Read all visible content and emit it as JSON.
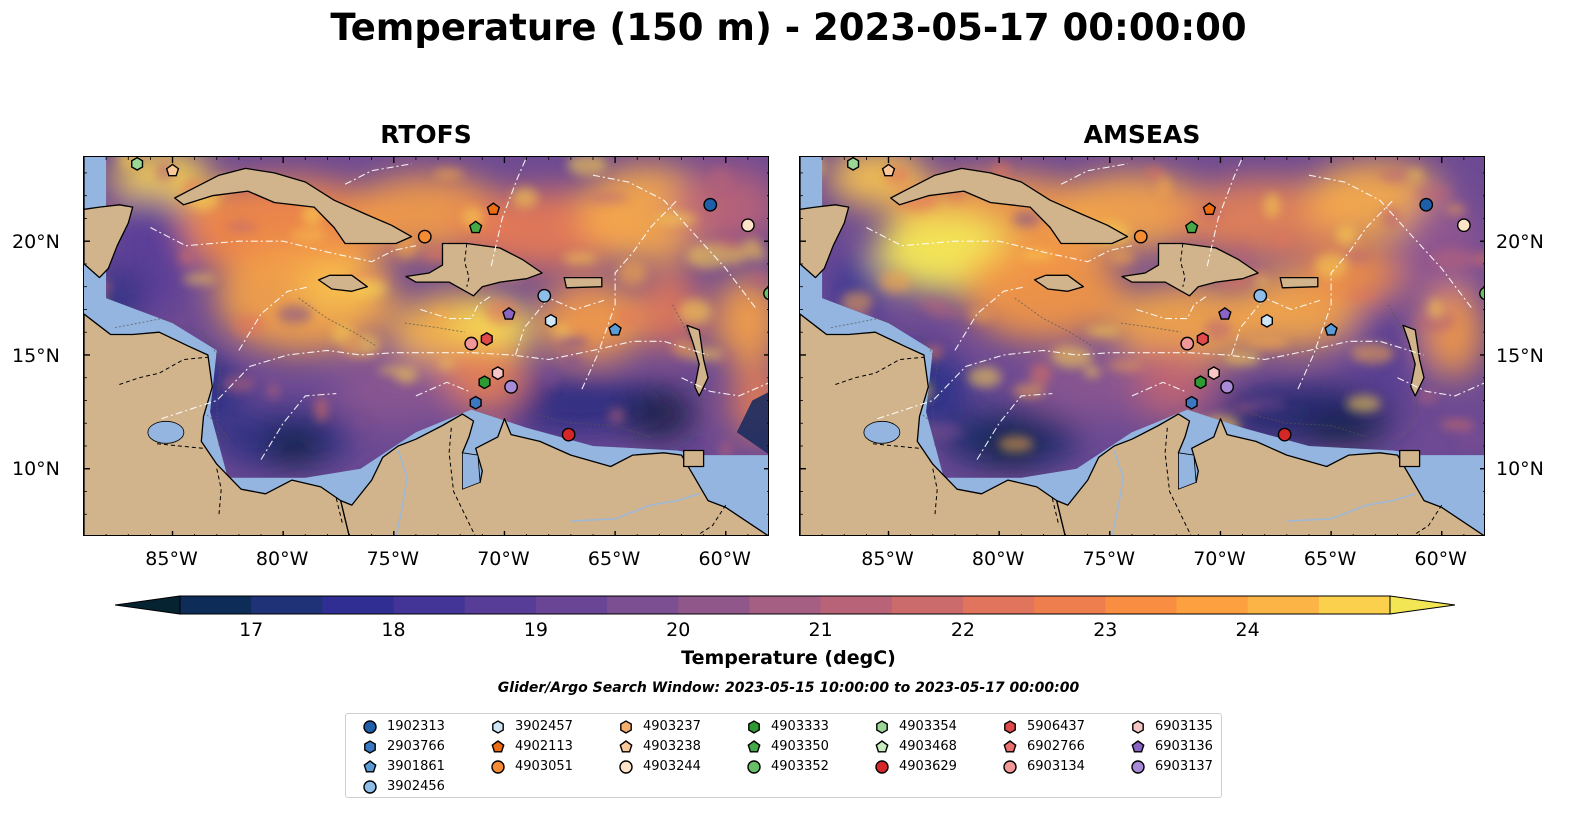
{
  "title": "Temperature (150 m) - 2023-05-17 00:00:00",
  "panels": [
    {
      "title": "RTOFS"
    },
    {
      "title": "AMSEAS"
    }
  ],
  "lat_labels": [
    "20°N",
    "15°N",
    "10°N"
  ],
  "lon_labels": [
    "85°W",
    "80°W",
    "75°W",
    "70°W",
    "65°W",
    "60°W"
  ],
  "colorbar": {
    "label": "Temperature (degC)",
    "ticks": [
      "17",
      "18",
      "19",
      "20",
      "21",
      "22",
      "23",
      "24"
    ],
    "colors": [
      "#062332",
      "#0e2c58",
      "#1f3278",
      "#302e92",
      "#433597",
      "#573d98",
      "#6a4595",
      "#7c4e92",
      "#90578b",
      "#a45f83",
      "#b86378",
      "#cc6b6c",
      "#e0745d",
      "#ee7e4e",
      "#f98d42",
      "#fca040",
      "#fdb446",
      "#fbd04d",
      "#f2e654"
    ]
  },
  "search_window": "Glider/Argo Search Window: 2023-05-15 10:00:00 to 2023-05-17 00:00:00",
  "legend": {
    "columns": [
      [
        {
          "label": "1902313",
          "marker": "circle",
          "color": "#1f5ea8"
        },
        {
          "label": "2903766",
          "marker": "hexagon",
          "color": "#3b78c2"
        },
        {
          "label": "3901861",
          "marker": "pentagon",
          "color": "#5b9bd5"
        },
        {
          "label": "3902456",
          "marker": "circle",
          "color": "#8dbde8"
        }
      ],
      [
        {
          "label": "3902457",
          "marker": "hexagon",
          "color": "#cfe6f7"
        },
        {
          "label": "4902113",
          "marker": "pentagon",
          "color": "#ee6c12"
        },
        {
          "label": "4903051",
          "marker": "circle",
          "color": "#f58c33"
        }
      ],
      [
        {
          "label": "4903237",
          "marker": "hexagon",
          "color": "#f8ae6c"
        },
        {
          "label": "4903238",
          "marker": "pentagon",
          "color": "#fbc89a"
        },
        {
          "label": "4903244",
          "marker": "circle",
          "color": "#fde3c8"
        }
      ],
      [
        {
          "label": "4903333",
          "marker": "hexagon",
          "color": "#2f9a34"
        },
        {
          "label": "4903350",
          "marker": "pentagon",
          "color": "#45aa46"
        },
        {
          "label": "4903352",
          "marker": "circle",
          "color": "#68c066"
        }
      ],
      [
        {
          "label": "4903354",
          "marker": "hexagon",
          "color": "#9bd895"
        },
        {
          "label": "4903468",
          "marker": "pentagon",
          "color": "#c8ecbe"
        },
        {
          "label": "4903629",
          "marker": "circle",
          "color": "#d62728"
        }
      ],
      [
        {
          "label": "5906437",
          "marker": "hexagon",
          "color": "#e04a4a"
        },
        {
          "label": "6902766",
          "marker": "pentagon",
          "color": "#ea7070"
        },
        {
          "label": "6903134",
          "marker": "circle",
          "color": "#f29797"
        }
      ],
      [
        {
          "label": "6903135",
          "marker": "hexagon",
          "color": "#f9c6c6"
        },
        {
          "label": "6903136",
          "marker": "pentagon",
          "color": "#8a64c2"
        },
        {
          "label": "6903137",
          "marker": "circle",
          "color": "#a98ad6"
        }
      ]
    ]
  },
  "map_markers": [
    {
      "float": "4903354",
      "marker": "hexagon",
      "color": "#9bd895",
      "lon": -86.6,
      "lat": 23.4
    },
    {
      "float": "4903238",
      "marker": "pentagon",
      "color": "#fbc89a",
      "lon": -85.0,
      "lat": 23.1
    },
    {
      "float": "1902313",
      "marker": "circle",
      "color": "#1f5ea8",
      "lon": -60.7,
      "lat": 21.6
    },
    {
      "float": "4903244",
      "marker": "circle",
      "color": "#fde3c8",
      "lon": -59.0,
      "lat": 20.7
    },
    {
      "float": "4903051",
      "marker": "circle",
      "color": "#f58c33",
      "lon": -73.6,
      "lat": 20.2
    },
    {
      "float": "4902113",
      "marker": "pentagon",
      "color": "#ee6c12",
      "lon": -70.5,
      "lat": 21.4
    },
    {
      "float": "4903350",
      "marker": "pentagon",
      "color": "#45aa46",
      "lon": -71.3,
      "lat": 20.6
    },
    {
      "float": "4903352",
      "marker": "circle",
      "color": "#68c066",
      "lon": -58.0,
      "lat": 17.7
    },
    {
      "float": "3902456",
      "marker": "circle",
      "color": "#8dbde8",
      "lon": -68.2,
      "lat": 17.6
    },
    {
      "float": "6903136",
      "marker": "pentagon",
      "color": "#8a64c2",
      "lon": -69.8,
      "lat": 16.8
    },
    {
      "float": "3902457",
      "marker": "hexagon",
      "color": "#cfe6f7",
      "lon": -67.9,
      "lat": 16.5
    },
    {
      "float": "3901861",
      "marker": "pentagon",
      "color": "#5b9bd5",
      "lon": -65.0,
      "lat": 16.1
    },
    {
      "float": "5906437",
      "marker": "hexagon",
      "color": "#e04a4a",
      "lon": -70.8,
      "lat": 15.7
    },
    {
      "float": "6903134",
      "marker": "circle",
      "color": "#f29797",
      "lon": -71.5,
      "lat": 15.5
    },
    {
      "float": "6903135",
      "marker": "hexagon",
      "color": "#f9c6c6",
      "lon": -70.3,
      "lat": 14.2
    },
    {
      "float": "4903333",
      "marker": "hexagon",
      "color": "#2f9a34",
      "lon": -70.9,
      "lat": 13.8
    },
    {
      "float": "6903137",
      "marker": "circle",
      "color": "#a98ad6",
      "lon": -69.7,
      "lat": 13.6
    },
    {
      "float": "2903766",
      "marker": "hexagon",
      "color": "#3b78c2",
      "lon": -71.3,
      "lat": 12.9
    },
    {
      "float": "4903629",
      "marker": "circle",
      "color": "#d62728",
      "lon": -67.1,
      "lat": 11.5
    }
  ]
}
